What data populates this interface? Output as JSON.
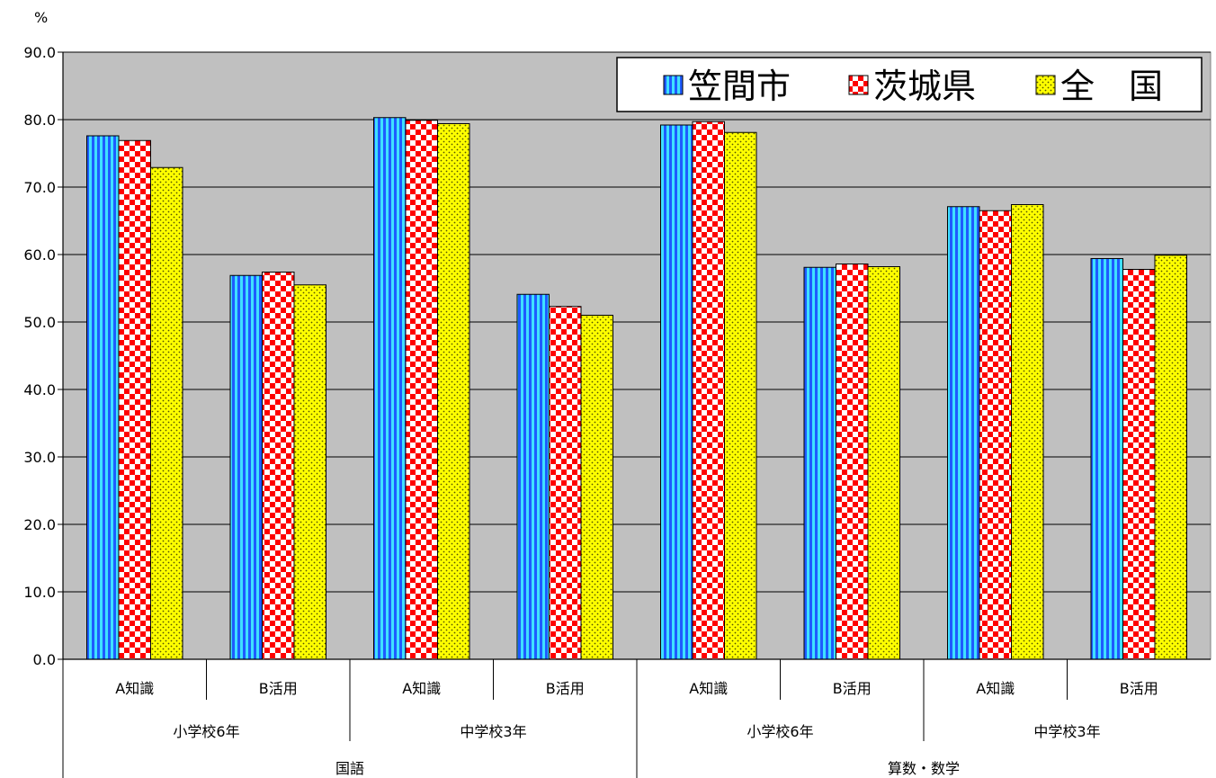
{
  "chart_data": {
    "type": "bar",
    "unit_label": "%",
    "ylim": [
      0,
      90
    ],
    "yticks": [
      "0.0",
      "10.0",
      "20.0",
      "30.0",
      "40.0",
      "50.0",
      "60.0",
      "70.0",
      "80.0",
      "90.0"
    ],
    "grid": true,
    "legend_position": "top-right",
    "categories": [
      {
        "label": "A知識",
        "school": "小学校6年",
        "subject": "国語"
      },
      {
        "label": "B活用",
        "school": "小学校6年",
        "subject": "国語"
      },
      {
        "label": "A知識",
        "school": "中学校3年",
        "subject": "国語"
      },
      {
        "label": "B活用",
        "school": "中学校3年",
        "subject": "国語"
      },
      {
        "label": "A知識",
        "school": "小学校6年",
        "subject": "算数・数学"
      },
      {
        "label": "B活用",
        "school": "小学校6年",
        "subject": "算数・数学"
      },
      {
        "label": "A知識",
        "school": "中学校3年",
        "subject": "算数・数学"
      },
      {
        "label": "B活用",
        "school": "中学校3年",
        "subject": "算数・数学"
      }
    ],
    "groups_level2": [
      "小学校6年",
      "中学校3年",
      "小学校6年",
      "中学校3年"
    ],
    "groups_level3": [
      "国語",
      "算数・数学"
    ],
    "series": [
      {
        "name": "笠間市",
        "color": "#1e5bff",
        "pattern": "vertical-stripes",
        "values": [
          77.6,
          56.9,
          80.3,
          54.1,
          79.2,
          58.1,
          67.1,
          59.4
        ]
      },
      {
        "name": "茨城県",
        "color": "#ff0000",
        "pattern": "checkerboard",
        "values": [
          76.9,
          57.4,
          79.9,
          52.3,
          79.7,
          58.6,
          66.5,
          57.8
        ]
      },
      {
        "name": "全　国",
        "color": "#ffff00",
        "pattern": "dots",
        "values": [
          72.9,
          55.5,
          79.4,
          51.0,
          78.1,
          58.2,
          67.4,
          59.9
        ]
      }
    ]
  }
}
